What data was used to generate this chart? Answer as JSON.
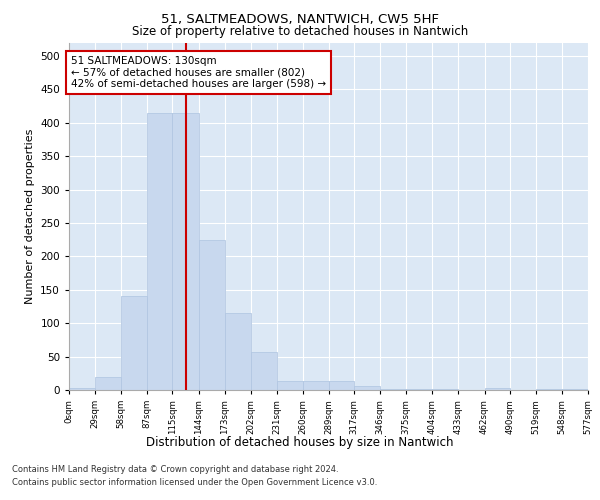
{
  "title1": "51, SALTMEADOWS, NANTWICH, CW5 5HF",
  "title2": "Size of property relative to detached houses in Nantwich",
  "xlabel": "Distribution of detached houses by size in Nantwich",
  "ylabel": "Number of detached properties",
  "bin_edges": [
    0,
    29,
    58,
    87,
    115,
    144,
    173,
    202,
    231,
    260,
    289,
    317,
    346,
    375,
    404,
    433,
    462,
    490,
    519,
    548,
    577
  ],
  "bar_heights": [
    3,
    20,
    140,
    415,
    415,
    225,
    115,
    57,
    13,
    13,
    13,
    6,
    1,
    1,
    1,
    0,
    3,
    0,
    1,
    1
  ],
  "bar_color": "#c8d8ee",
  "bar_edge_color": "#aec4e0",
  "property_size": 130,
  "vline_color": "#cc0000",
  "annotation_text": "51 SALTMEADOWS: 130sqm\n← 57% of detached houses are smaller (802)\n42% of semi-detached houses are larger (598) →",
  "annotation_box_facecolor": "#ffffff",
  "annotation_box_edge": "#cc0000",
  "plot_bg_color": "#dce8f5",
  "footer_line1": "Contains HM Land Registry data © Crown copyright and database right 2024.",
  "footer_line2": "Contains public sector information licensed under the Open Government Licence v3.0.",
  "ylim": [
    0,
    520
  ],
  "yticks": [
    0,
    50,
    100,
    150,
    200,
    250,
    300,
    350,
    400,
    450,
    500
  ],
  "tick_labels": [
    "0sqm",
    "29sqm",
    "58sqm",
    "87sqm",
    "115sqm",
    "144sqm",
    "173sqm",
    "202sqm",
    "231sqm",
    "260sqm",
    "289sqm",
    "317sqm",
    "346sqm",
    "375sqm",
    "404sqm",
    "433sqm",
    "462sqm",
    "490sqm",
    "519sqm",
    "548sqm",
    "577sqm"
  ]
}
